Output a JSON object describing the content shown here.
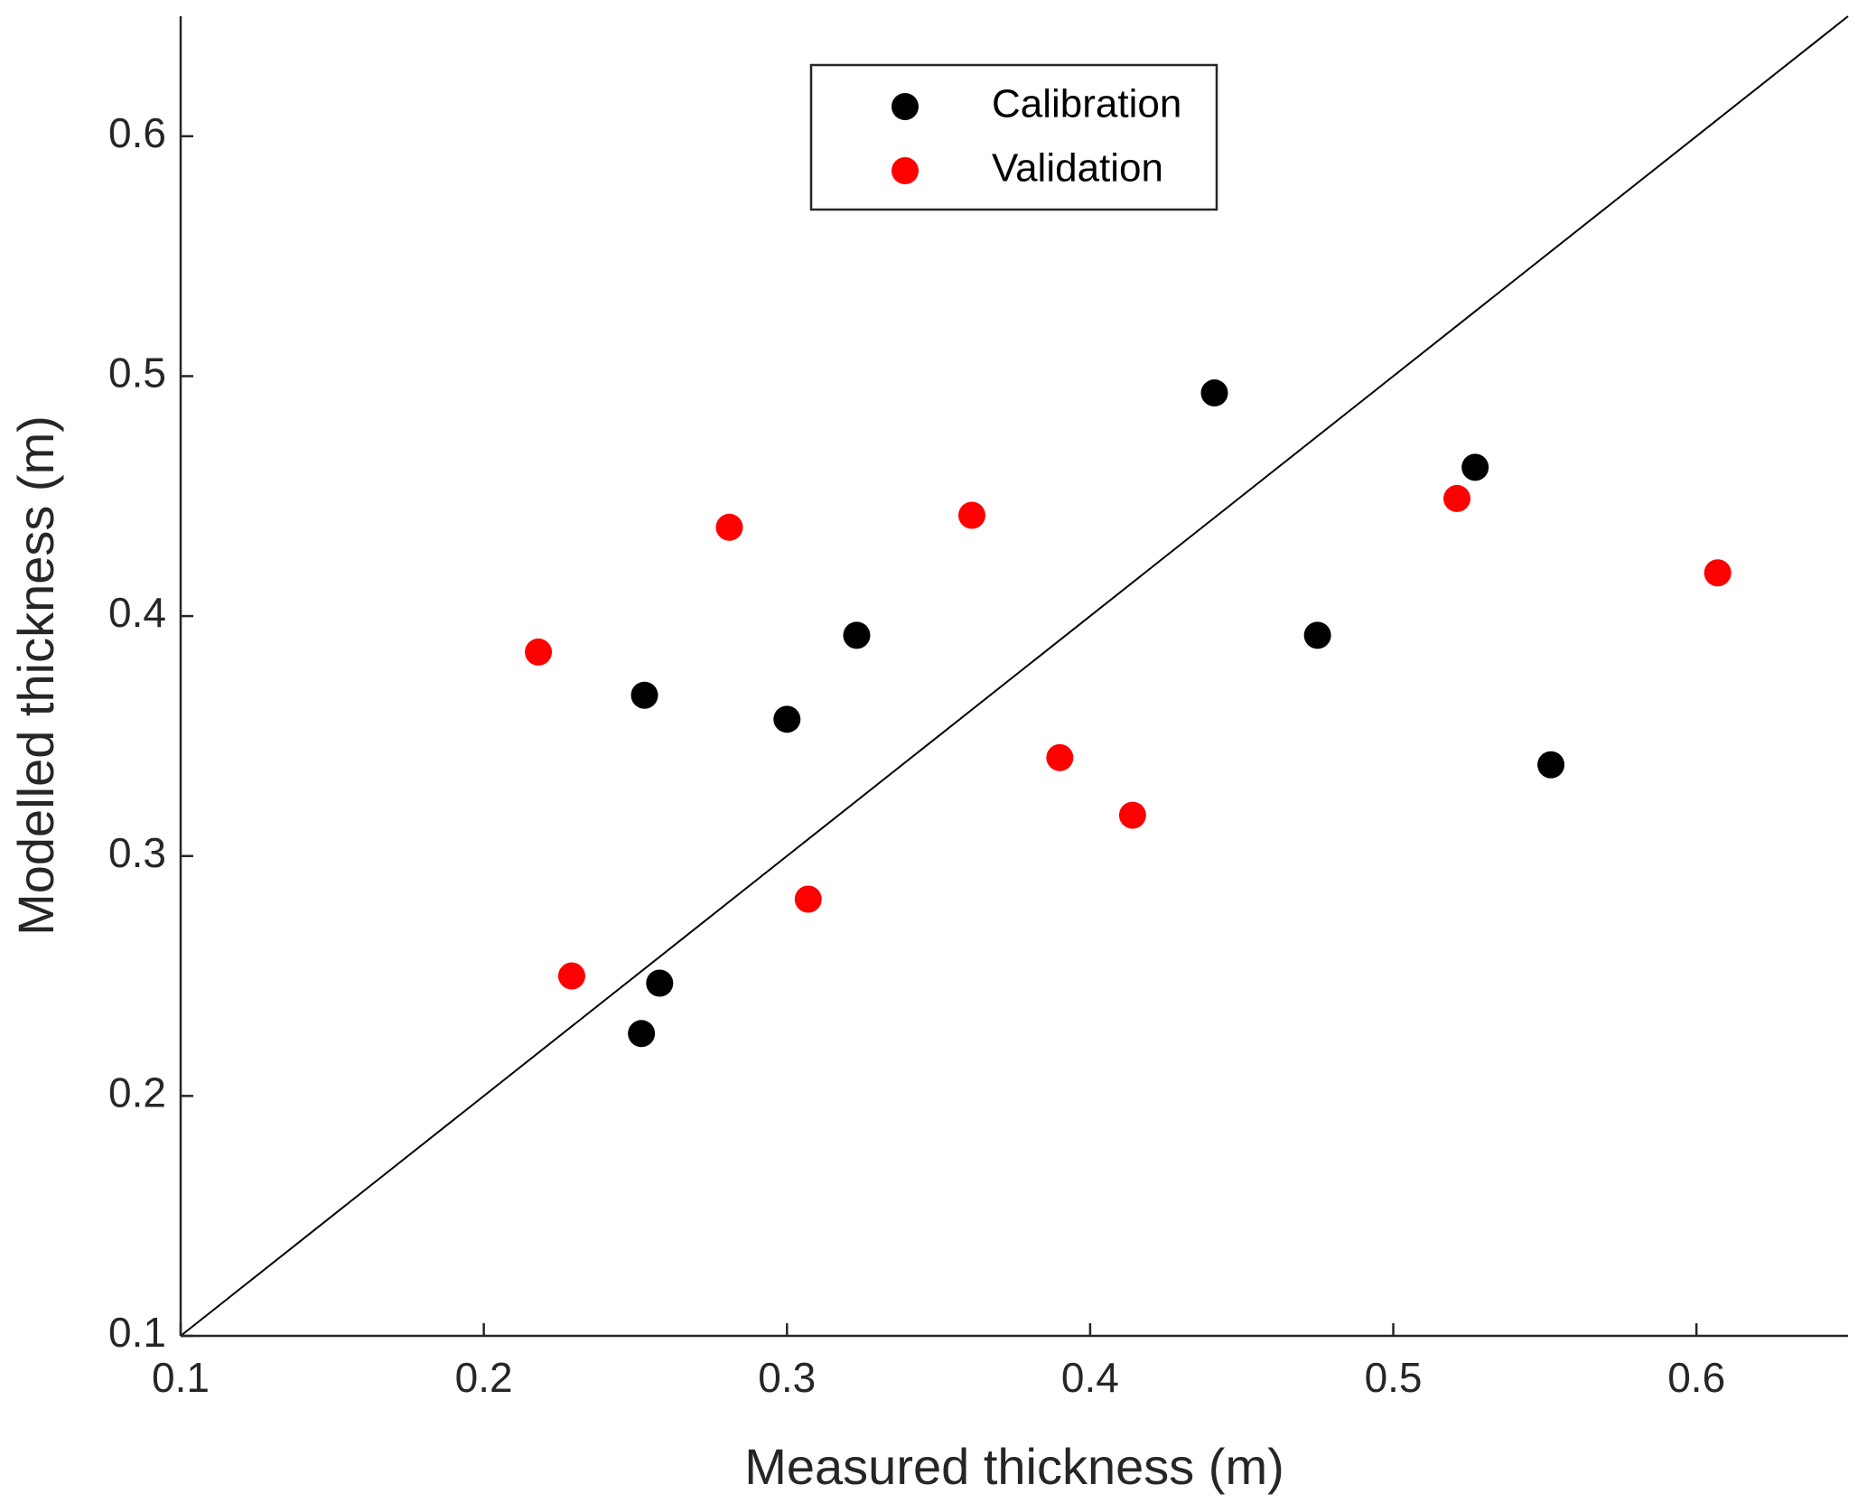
{
  "chart_data": {
    "type": "scatter",
    "xlabel": "Measured thickness (m)",
    "ylabel": "Modelled thickness (m)",
    "xlim": [
      0.1,
      0.65
    ],
    "ylim": [
      0.1,
      0.65
    ],
    "xticks": [
      0.1,
      0.2,
      0.3,
      0.4,
      0.5,
      0.6
    ],
    "yticks": [
      0.1,
      0.2,
      0.3,
      0.4,
      0.5,
      0.6
    ],
    "legend": "top-center",
    "series": [
      {
        "name": "Calibration",
        "color": "#000000",
        "x": [
          0.441,
          0.527,
          0.323,
          0.475,
          0.253,
          0.3,
          0.552,
          0.258,
          0.252
        ],
        "values": [
          0.493,
          0.462,
          0.392,
          0.392,
          0.367,
          0.357,
          0.338,
          0.247,
          0.226
        ]
      },
      {
        "name": "Validation",
        "color": "#ff0000",
        "x": [
          0.218,
          0.281,
          0.361,
          0.521,
          0.607,
          0.39,
          0.414,
          0.307,
          0.229
        ],
        "values": [
          0.385,
          0.437,
          0.442,
          0.449,
          0.418,
          0.341,
          0.317,
          0.282,
          0.25
        ]
      }
    ]
  }
}
